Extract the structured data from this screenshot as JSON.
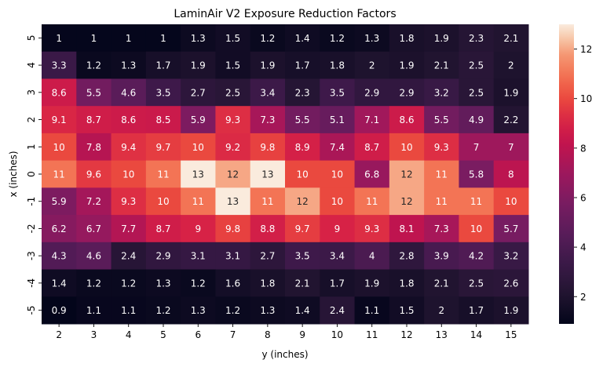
{
  "chart_data": {
    "type": "heatmap",
    "title": "LaminAir V2 Exposure Reduction Factors",
    "xlabel": "y (inches)",
    "ylabel": "x (inches)",
    "x_categories": [
      "2",
      "3",
      "4",
      "5",
      "6",
      "7",
      "8",
      "9",
      "10",
      "11",
      "12",
      "13",
      "14",
      "15"
    ],
    "y_categories": [
      "5",
      "4",
      "3",
      "2",
      "1",
      "0",
      "-1",
      "-2",
      "-3",
      "-4",
      "-5"
    ],
    "values": [
      [
        1,
        1,
        1,
        1,
        1.3,
        1.5,
        1.2,
        1.4,
        1.2,
        1.3,
        1.8,
        1.9,
        2.3,
        2.1
      ],
      [
        3.3,
        1.2,
        1.3,
        1.7,
        1.9,
        1.5,
        1.9,
        1.7,
        1.8,
        2,
        1.9,
        2.1,
        2.5,
        2
      ],
      [
        8.6,
        5.5,
        4.6,
        3.5,
        2.7,
        2.5,
        3.4,
        2.3,
        3.5,
        2.9,
        2.9,
        3.2,
        2.5,
        1.9
      ],
      [
        9.1,
        8.7,
        8.6,
        8.5,
        5.9,
        9.3,
        7.3,
        5.5,
        5.1,
        7.1,
        8.6,
        5.5,
        4.9,
        2.2
      ],
      [
        10,
        7.8,
        9.4,
        9.7,
        10,
        9.2,
        9.8,
        8.9,
        7.4,
        8.7,
        10,
        9.3,
        7,
        7
      ],
      [
        11,
        9.6,
        10,
        11,
        13,
        12,
        13,
        10,
        10,
        6.8,
        12,
        11,
        5.8,
        8
      ],
      [
        5.9,
        7.2,
        9.3,
        10,
        11,
        13,
        11,
        12,
        10,
        11,
        12,
        11,
        11,
        10
      ],
      [
        6.2,
        6.7,
        7.7,
        8.7,
        9,
        9.8,
        8.8,
        9.7,
        9,
        9.3,
        8.1,
        7.3,
        10,
        5.7
      ],
      [
        4.3,
        4.6,
        2.4,
        2.9,
        3.1,
        3.1,
        2.7,
        3.5,
        3.4,
        4,
        2.8,
        3.9,
        4.2,
        3.2
      ],
      [
        1.4,
        1.2,
        1.2,
        1.3,
        1.2,
        1.6,
        1.8,
        2.1,
        1.7,
        1.9,
        1.8,
        2.1,
        2.5,
        2.6
      ],
      [
        0.9,
        1.1,
        1.1,
        1.2,
        1.3,
        1.2,
        1.3,
        1.4,
        2.4,
        1.1,
        1.5,
        2,
        1.7,
        1.9
      ]
    ],
    "colormap": "rocket",
    "colorbar": {
      "range": [
        0.9,
        13
      ],
      "ticks": [
        2,
        4,
        6,
        8,
        10,
        12
      ],
      "tick_labels": [
        "2",
        "4",
        "6",
        "8",
        "10",
        "12"
      ]
    },
    "annotations": true,
    "grid": false,
    "legend": "colorbar-right"
  }
}
